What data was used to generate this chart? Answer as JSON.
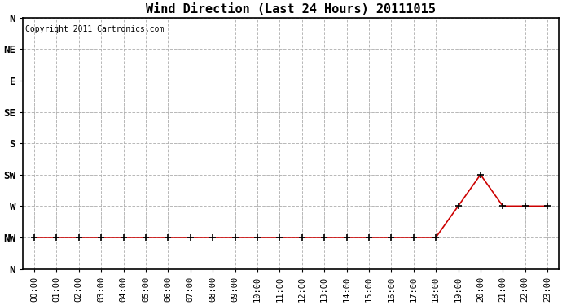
{
  "title": "Wind Direction (Last 24 Hours) 20111015",
  "copyright": "Copyright 2011 Cartronics.com",
  "line_color": "#cc0000",
  "marker": "+",
  "background_color": "#ffffff",
  "grid_color": "#b0b0b0",
  "direction_labels": [
    "N",
    "NW",
    "W",
    "SW",
    "S",
    "SE",
    "E",
    "NE",
    "N"
  ],
  "direction_values": [
    360,
    315,
    270,
    225,
    180,
    135,
    90,
    45,
    0
  ],
  "hours": [
    0,
    1,
    2,
    3,
    4,
    5,
    6,
    7,
    8,
    9,
    10,
    11,
    12,
    13,
    14,
    15,
    16,
    17,
    18,
    19,
    20,
    21,
    22,
    23
  ],
  "wind_values": [
    315,
    315,
    315,
    315,
    315,
    315,
    315,
    315,
    315,
    315,
    315,
    315,
    315,
    315,
    315,
    315,
    315,
    315,
    315,
    270,
    225,
    270,
    270,
    270
  ],
  "xlim": [
    -0.5,
    23.5
  ],
  "ylim": [
    0,
    360
  ],
  "ylabel_fontsize": 9,
  "title_fontsize": 11,
  "tick_fontsize": 7.5,
  "copyright_fontsize": 7
}
